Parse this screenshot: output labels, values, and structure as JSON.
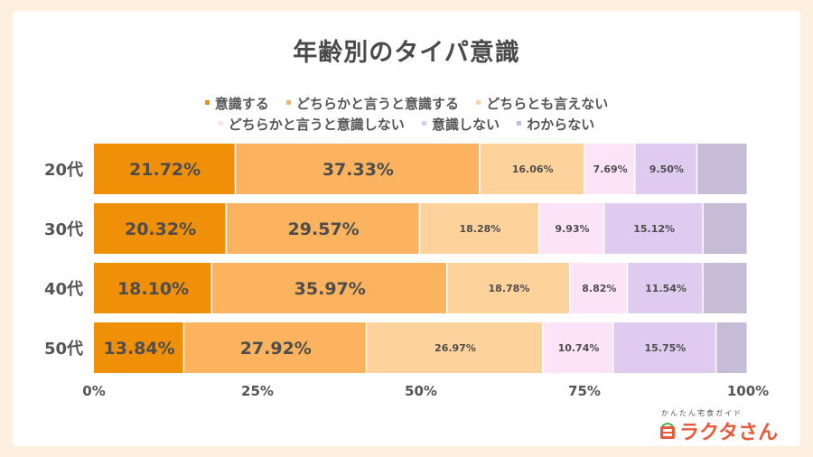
{
  "chart_data": {
    "type": "bar",
    "orientation": "horizontal",
    "stacked": true,
    "title": "年齢別のタイパ意識",
    "categories": [
      "20代",
      "30代",
      "40代",
      "50代"
    ],
    "series": [
      {
        "name": "意識する",
        "color": "#f08f08",
        "values": [
          21.72,
          20.32,
          18.1,
          13.84
        ],
        "labels": [
          "21.72%",
          "20.32%",
          "18.10%",
          "13.84%"
        ]
      },
      {
        "name": "どちらかと言うと意識する",
        "color": "#fbb35f",
        "values": [
          37.33,
          29.57,
          35.97,
          27.92
        ],
        "labels": [
          "37.33%",
          "29.57%",
          "35.97%",
          "27.92%"
        ]
      },
      {
        "name": "どちらとも言えない",
        "color": "#fdd39b",
        "values": [
          16.06,
          18.28,
          18.78,
          26.97
        ],
        "labels": [
          "16.06%",
          "18.28%",
          "18.78%",
          "26.97%"
        ]
      },
      {
        "name": "どちらかと言うと意識しない",
        "color": "#fde3f7",
        "values": [
          7.69,
          9.93,
          8.82,
          10.74
        ],
        "labels": [
          "7.69%",
          "9.93%",
          "8.82%",
          "10.74%"
        ]
      },
      {
        "name": "意識しない",
        "color": "#e0cbf0",
        "values": [
          9.5,
          15.12,
          11.54,
          15.75
        ],
        "labels": [
          "9.50%",
          "15.12%",
          "11.54%",
          "15.75%"
        ]
      },
      {
        "name": "わからない",
        "color": "#c6bcd8",
        "values": [
          7.7,
          6.78,
          6.79,
          4.78
        ],
        "labels": [
          "",
          "",
          "",
          ""
        ]
      }
    ],
    "xlim": [
      0,
      100
    ],
    "x_ticks": [
      "0%",
      "25%",
      "50%",
      "75%",
      "100%"
    ],
    "grid": false,
    "legend_position": "top"
  },
  "branding": {
    "tagline": "かんたん宅食ガイド",
    "name": "ラクタさん",
    "accent": "#e95a3a"
  }
}
